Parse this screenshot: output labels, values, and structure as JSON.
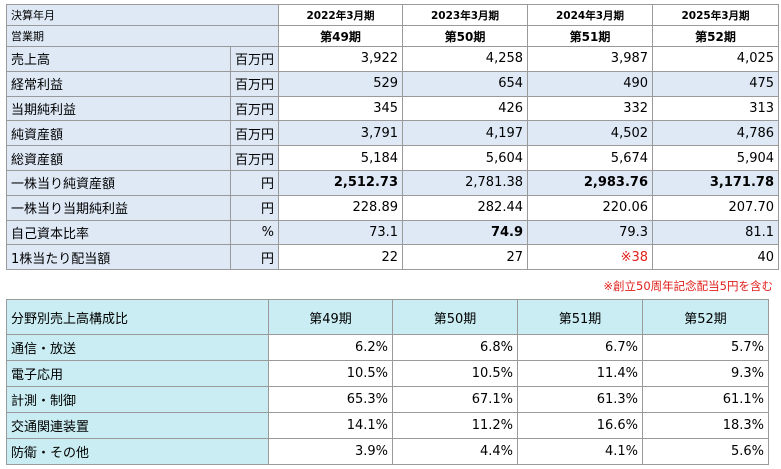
{
  "financials": {
    "header_label_1": "決算年月",
    "header_label_2": "営業期",
    "years": [
      "2022年3月期",
      "2023年3月期",
      "2024年3月期",
      "2025年3月期"
    ],
    "periods": [
      "第49期",
      "第50期",
      "第51期",
      "第52期"
    ],
    "rows": [
      {
        "label": "売上高",
        "unit": "百万円",
        "values": [
          "3,922",
          "4,258",
          "3,987",
          "4,025"
        ]
      },
      {
        "label": "経常利益",
        "unit": "百万円",
        "values": [
          "529",
          "654",
          "490",
          "475"
        ]
      },
      {
        "label": "当期純利益",
        "unit": "百万円",
        "values": [
          "345",
          "426",
          "332",
          "313"
        ]
      },
      {
        "label": "純資産額",
        "unit": "百万円",
        "values": [
          "3,791",
          "4,197",
          "4,502",
          "4,786"
        ]
      },
      {
        "label": "総資産額",
        "unit": "百万円",
        "values": [
          "5,184",
          "5,604",
          "5,674",
          "5,904"
        ]
      },
      {
        "label": "一株当り純資産額",
        "unit": "円",
        "values": [
          "2,512.73",
          "2,781.38",
          "2,983.76",
          "3,171.78"
        ]
      },
      {
        "label": "一株当り当期純利益",
        "unit": "円",
        "values": [
          "228.89",
          "282.44",
          "220.06",
          "207.70"
        ]
      },
      {
        "label": "自己資本比率",
        "unit": "%",
        "values": [
          "73.1",
          "74.9",
          "79.3",
          "81.1"
        ]
      },
      {
        "label": "1株当たり配当額",
        "unit": "円",
        "values": [
          "22",
          "27",
          "※38",
          "40"
        ]
      }
    ],
    "note": "※創立50周年記念配当5円を含む",
    "highlight_color": "#dfe9f6",
    "note_color": "#e0201c"
  },
  "segments": {
    "title": "分野別売上高構成比",
    "periods": [
      "第49期",
      "第50期",
      "第51期",
      "第52期"
    ],
    "rows": [
      {
        "label": "通信・放送",
        "values": [
          "6.2%",
          "6.8%",
          "6.7%",
          "5.7%"
        ]
      },
      {
        "label": "電子応用",
        "values": [
          "10.5%",
          "10.5%",
          "11.4%",
          "9.3%"
        ]
      },
      {
        "label": "計測・制御",
        "values": [
          "65.3%",
          "67.1%",
          "61.3%",
          "61.1%"
        ]
      },
      {
        "label": "交通関連装置",
        "values": [
          "14.1%",
          "11.2%",
          "16.6%",
          "18.3%"
        ]
      },
      {
        "label": "防衛・その他",
        "values": [
          "3.9%",
          "4.4%",
          "4.1%",
          "5.6%"
        ]
      }
    ],
    "highlight_color": "#c9edf2"
  }
}
